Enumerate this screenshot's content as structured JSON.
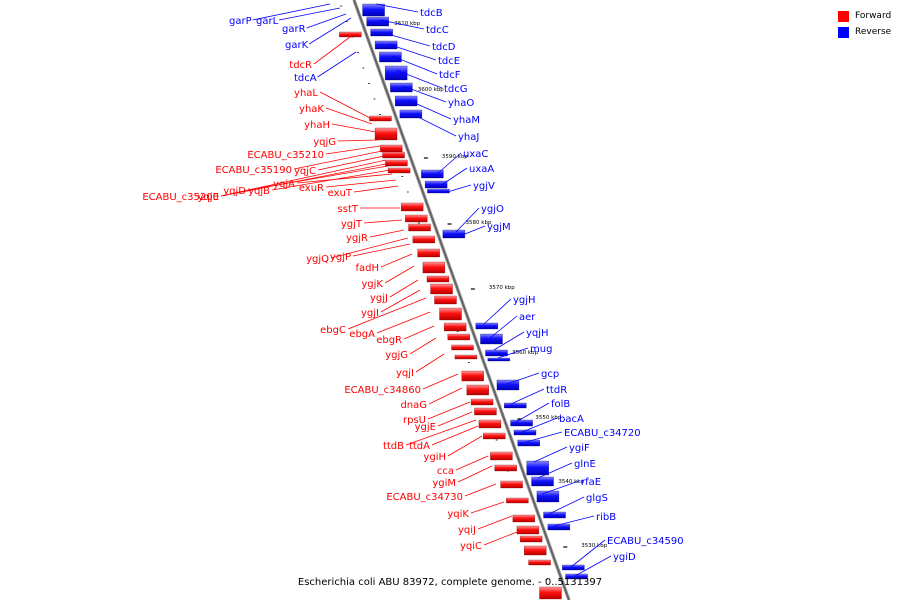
{
  "legend": {
    "forward_label": "Forward",
    "reverse_label": "Reverse",
    "forward_color": "#ff0000",
    "reverse_color": "#0000ff"
  },
  "caption": "Escherichia coli ABU 83972, complete genome. - 0..5131397",
  "scale_marks": [
    "3610 kbp",
    "3600 kbp",
    "3590 kbp",
    "3580 kbp",
    "3570 kbp",
    "3560 kbp",
    "3550 kbp",
    "3540 kbp",
    "3530 kbp"
  ],
  "reverse_genes": [
    "garP",
    "garL",
    "garR",
    "garK",
    "tdcA",
    "tdcB",
    "tdcC",
    "tdcD",
    "tdcE",
    "tdcF",
    "tdcG",
    "yhaO",
    "yhaM",
    "yhaJ",
    "uxaC",
    "uxaA",
    "ygjV",
    "ygjO",
    "ygjM",
    "ygjH",
    "aer",
    "yqjH",
    "mug",
    "gcp",
    "ttdR",
    "folB",
    "bacA",
    "ECABU_c34720",
    "ygiF",
    "glnE",
    "rfaE",
    "glgS",
    "ribB",
    "ECABU_c34590",
    "ygiD"
  ],
  "forward_genes": [
    "tdcR",
    "yhaL",
    "yhaK",
    "yhaH",
    "yqjG",
    "ECABU_c35210",
    "ECABU_c35190",
    "yqjC",
    "ECABU_c35200",
    "yqjE",
    "yqjD",
    "yqjB",
    "yqjA",
    "exuR",
    "exuT",
    "sstT",
    "ygjT",
    "ygjR",
    "ygjQ",
    "ygjP",
    "fadH",
    "ygjK",
    "ygjJ",
    "ygjI",
    "ebgC",
    "ebgA",
    "ebgR",
    "ygjG",
    "yqjI",
    "ECABU_c34860",
    "dnaG",
    "rpsU",
    "ygjE",
    "ttdB",
    "ttdA",
    "ygiH",
    "cca",
    "ygiM",
    "ECABU_c34730",
    "yqiK",
    "yqiJ",
    "yqiC"
  ]
}
